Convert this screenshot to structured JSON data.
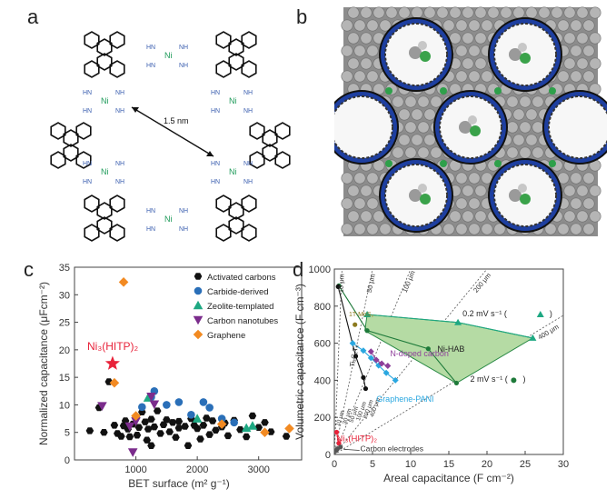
{
  "panels": {
    "a": {
      "letter": "a",
      "distance_label": "1.5 nm",
      "nh": "NH",
      "hn": "HN",
      "ni": "Ni"
    },
    "b": {
      "letter": "b"
    },
    "c": {
      "letter": "c"
    },
    "d": {
      "letter": "d"
    }
  },
  "colors": {
    "activated": "#111111",
    "carbide": "#2a6fb8",
    "zeolite": "#1ea882",
    "cnt": "#7b2c8c",
    "graphene": "#f28a22",
    "nihitp": "#e8233a",
    "nihab_fill": "#b5dba4",
    "mxene": "#8c7a1e",
    "pani": "#2aa7e0",
    "ndoped": "#8e3f9a"
  },
  "chart_data": [
    {
      "type": "scatter",
      "panel": "c",
      "xlabel": "BET surface (m² g⁻¹)",
      "ylabel": "Normalized capacitance (μFcm⁻²)",
      "xlim": [
        0,
        3700
      ],
      "ylim": [
        0,
        35
      ],
      "xticks": [
        "1000",
        "2000",
        "3000"
      ],
      "yticks": [
        "0",
        "5",
        "10",
        "15",
        "20",
        "25",
        "30",
        "35"
      ],
      "legend_position": "top-right",
      "annotation": "Ni₃(HITP)₂",
      "series": [
        {
          "name": "Activated carbons",
          "marker": "hexagon",
          "color": "#111111",
          "points": [
            [
              250,
              5.3
            ],
            [
              400,
              9.5
            ],
            [
              480,
              5.0
            ],
            [
              560,
              14.2
            ],
            [
              650,
              6.3
            ],
            [
              700,
              4.8
            ],
            [
              800,
              6.2
            ],
            [
              830,
              7.1
            ],
            [
              870,
              5.6
            ],
            [
              900,
              4.2
            ],
            [
              950,
              6.5
            ],
            [
              1000,
              7.8
            ],
            [
              1020,
              4.5
            ],
            [
              1050,
              5.9
            ],
            [
              1100,
              8.7
            ],
            [
              1150,
              6.9
            ],
            [
              1180,
              3.6
            ],
            [
              1200,
              5.6
            ],
            [
              1250,
              7.4
            ],
            [
              1300,
              6.0
            ],
            [
              1350,
              8.9
            ],
            [
              1400,
              4.8
            ],
            [
              1450,
              6.4
            ],
            [
              1500,
              7.3
            ],
            [
              1550,
              5.1
            ],
            [
              1600,
              6.8
            ],
            [
              1650,
              4.1
            ],
            [
              1700,
              7.0
            ],
            [
              1800,
              6.1
            ],
            [
              1850,
              2.6
            ],
            [
              1900,
              7.5
            ],
            [
              2000,
              5.7
            ],
            [
              2050,
              3.8
            ],
            [
              2100,
              6.3
            ],
            [
              2200,
              4.6
            ],
            [
              2250,
              7.1
            ],
            [
              2300,
              5.4
            ],
            [
              2400,
              6.0
            ],
            [
              2500,
              4.4
            ],
            [
              2600,
              7.2
            ],
            [
              2700,
              5.5
            ],
            [
              2800,
              4.2
            ],
            [
              2900,
              8.0
            ],
            [
              3000,
              5.9
            ],
            [
              3100,
              6.8
            ],
            [
              3200,
              5.1
            ],
            [
              3450,
              4.3
            ],
            [
              1250,
              2.6
            ],
            [
              2450,
              6.7
            ],
            [
              1700,
              5.8
            ],
            [
              760,
              4.3
            ],
            [
              2150,
              7.6
            ],
            [
              1950,
              6.3
            ]
          ]
        },
        {
          "name": "Carbide-derived",
          "marker": "circle",
          "color": "#2a6fb8",
          "points": [
            [
              1100,
              9.6
            ],
            [
              1300,
              12.5
            ],
            [
              1500,
              10.0
            ],
            [
              1700,
              10.5
            ],
            [
              1900,
              8.2
            ],
            [
              2100,
              10.5
            ],
            [
              2200,
              9.5
            ],
            [
              2400,
              7.5
            ],
            [
              2600,
              6.8
            ],
            [
              1250,
              11.4
            ]
          ]
        },
        {
          "name": "Zeolite-templated",
          "marker": "triangle-up",
          "color": "#1ea882",
          "points": [
            [
              1200,
              11.3
            ],
            [
              2000,
              7.5
            ],
            [
              2800,
              5.8
            ],
            [
              2900,
              6.2
            ]
          ]
        },
        {
          "name": "Carbon nanotubes",
          "marker": "triangle-down",
          "color": "#7b2c8c",
          "points": [
            [
              450,
              9.8
            ],
            [
              900,
              6.1
            ],
            [
              950,
              1.4
            ],
            [
              1000,
              7.0
            ],
            [
              1250,
              11.5
            ],
            [
              1300,
              10.1
            ]
          ]
        },
        {
          "name": "Graphene",
          "marker": "diamond",
          "color": "#f28a22",
          "points": [
            [
              800,
              32.3
            ],
            [
              650,
              14.0
            ],
            [
              1000,
              8.0
            ],
            [
              2400,
              6.5
            ],
            [
              3100,
              5.0
            ],
            [
              3500,
              5.7
            ]
          ]
        },
        {
          "name": "Ni₃(HITP)₂",
          "marker": "star",
          "color": "#e8233a",
          "points": [
            [
              620,
              17.5
            ]
          ]
        }
      ]
    },
    {
      "type": "line",
      "panel": "d",
      "xlabel": "Areal capacitance (F cm⁻²)",
      "ylabel": "Volumetric capacitance (F cm⁻³)",
      "xlim": [
        0,
        30
      ],
      "ylim": [
        0,
        1000
      ],
      "xticks": [
        "0",
        "5",
        "10",
        "15",
        "20",
        "25",
        "30"
      ],
      "yticks": [
        "0",
        "200",
        "400",
        "600",
        "800",
        "1000"
      ],
      "thickness_lines": [
        {
          "label": "10 μm",
          "um": 10
        },
        {
          "label": "50 μm",
          "um": 50
        },
        {
          "label": "100 μm",
          "um": 100
        },
        {
          "label": "200 μm",
          "um": 200
        },
        {
          "label": "400 μm",
          "um": 400
        }
      ],
      "lower_thickness_labels": [
        "10 μm",
        "30 μm",
        "50 μm",
        "100 μm",
        "200 μm",
        "400 μm"
      ],
      "nihab_region": [
        [
          4.3,
          755
        ],
        [
          16.2,
          712
        ],
        [
          26.0,
          628
        ],
        [
          16.0,
          385
        ],
        [
          4.0,
          668
        ]
      ],
      "series": [
        {
          "name": "Ni-HAB",
          "color": "#1e7a3a",
          "points": [
            [
              0.6,
              910
            ],
            [
              4.3,
              668
            ],
            [
              12.3,
              570
            ],
            [
              16.0,
              385
            ]
          ]
        },
        {
          "name": "0.2 mV s⁻¹",
          "color": "#1ea882",
          "points": [
            [
              4.3,
              755
            ],
            [
              16.2,
              712
            ],
            [
              26.0,
              628
            ]
          ]
        },
        {
          "name": "Ti₃C₂Tₓ",
          "color": "#111111",
          "points": [
            [
              0.5,
              905
            ],
            [
              2.8,
              530
            ],
            [
              3.8,
              415
            ],
            [
              4.1,
              355
            ]
          ]
        },
        {
          "name": "T-MoS₂",
          "color": "#8c7a1e",
          "points": [
            [
              2.7,
              700
            ]
          ]
        },
        {
          "name": "Graphene-PANI",
          "color": "#2aa7e0",
          "points": [
            [
              2.4,
              600
            ],
            [
              3.8,
              560
            ],
            [
              4.8,
              520
            ],
            [
              5.8,
              480
            ],
            [
              6.8,
              440
            ],
            [
              8.0,
              400
            ]
          ]
        },
        {
          "name": "N-doped carbon",
          "color": "#8e3f9a",
          "points": [
            [
              4.8,
              555
            ],
            [
              5.5,
              510
            ],
            [
              6.2,
              490
            ],
            [
              7.0,
              478
            ]
          ]
        },
        {
          "name": "Ni₃(HITP)₂",
          "color": "#e8233a",
          "points": [
            [
              0.3,
              120
            ],
            [
              0.6,
              60
            ]
          ]
        },
        {
          "name": "Carbon electrodes",
          "color": "#555555",
          "points": [
            [
              0.2,
              20
            ],
            [
              0.4,
              30
            ],
            [
              0.8,
              40
            ]
          ]
        }
      ],
      "labels": {
        "rate_high": "0.2 mV s⁻¹ (",
        "rate_low": "2 mV s⁻¹ (",
        "nihab": "Ni-HAB",
        "ndoped": "N-doped carbon",
        "pani": "Graphene-PANI",
        "mxene": "Ti₃C₂Tₓ",
        "tmos2": "1T-MoS₂",
        "nihitp": "Ni₃(HITP)₂",
        "carbon": "Carbon electrodes"
      }
    }
  ]
}
